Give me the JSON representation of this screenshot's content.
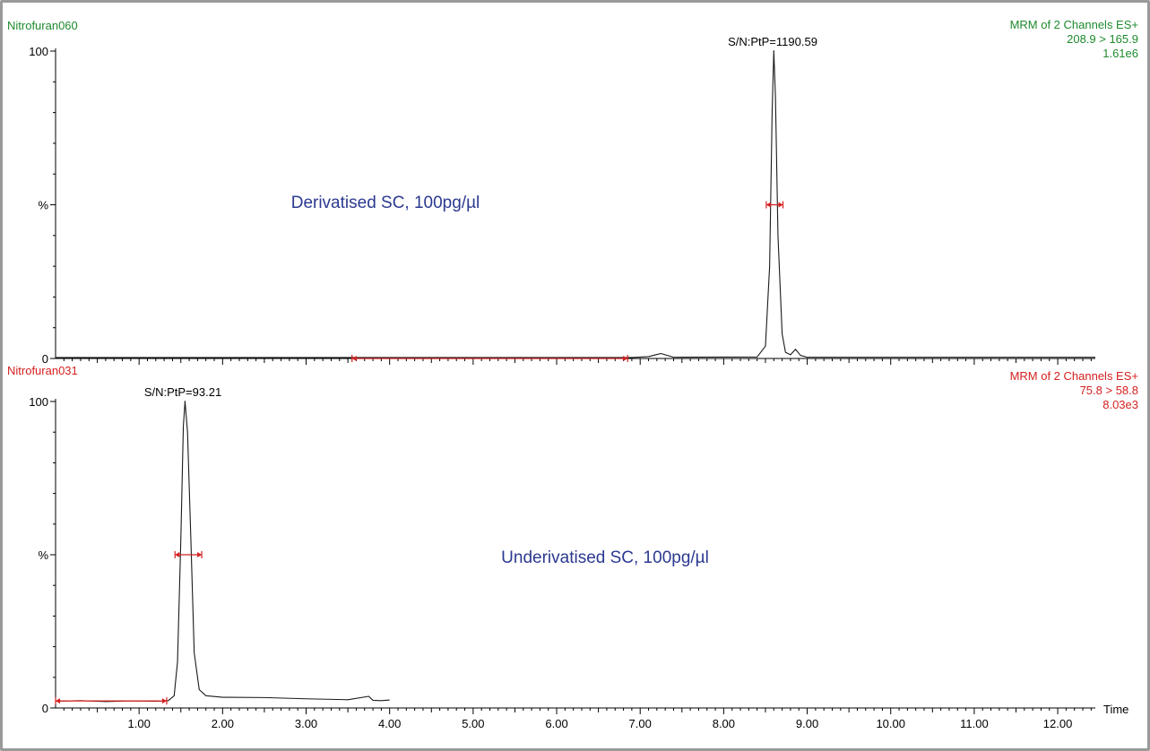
{
  "colors": {
    "trace": "#1a1a1a",
    "axis": "#000000",
    "integration": "#d42020",
    "panel_top_header": "#1e8a2e",
    "panel_bottom_header": "#d42020",
    "annotation": "#2b3990"
  },
  "chart_data": [
    {
      "type": "line",
      "name": "Nitrofuran060",
      "header_right": [
        "MRM of 2 Channels ES+",
        "208.9 > 165.9",
        "1.61e6"
      ],
      "annotation": "Derivatised SC, 100pg/µl",
      "peak_label": "S/N:PtP=1190.59",
      "y_ticks": [
        {
          "v": 0,
          "label": "0"
        },
        {
          "v": 50,
          "label": "%"
        },
        {
          "v": 100,
          "label": "100"
        }
      ],
      "ylim": [
        0,
        100
      ],
      "xlim": [
        0.0,
        12.45
      ],
      "x": [
        0.0,
        6.9,
        7.1,
        7.2,
        7.25,
        7.3,
        7.4,
        8.4,
        8.5,
        8.55,
        8.58,
        8.6,
        8.62,
        8.65,
        8.7,
        8.74,
        8.8,
        8.86,
        8.92,
        9.0,
        12.45
      ],
      "y": [
        0.3,
        0.3,
        0.6,
        1.3,
        1.6,
        1.2,
        0.4,
        0.5,
        4,
        30,
        80,
        100,
        85,
        40,
        8,
        2,
        1.2,
        3,
        1,
        0.4,
        0.4
      ],
      "integration": [
        {
          "x1": 3.55,
          "x2": 6.85,
          "y": 0
        },
        {
          "x1": 8.51,
          "x2": 8.71,
          "y": 50
        }
      ]
    },
    {
      "type": "line",
      "name": "Nitrofuran031",
      "header_right": [
        "MRM of 2 Channels ES+",
        "75.8 > 58.8",
        "8.03e3"
      ],
      "annotation": "Underivatised SC, 100pg/µl",
      "peak_label": "S/N:PtP=93.21",
      "y_ticks": [
        {
          "v": 0,
          "label": "0"
        },
        {
          "v": 50,
          "label": "%"
        },
        {
          "v": 100,
          "label": "100"
        }
      ],
      "ylim": [
        0,
        100
      ],
      "xlim": [
        0.0,
        12.45
      ],
      "xlabel": "Time",
      "x_tick_labels": [
        "1.00",
        "2.00",
        "3.00",
        "4.00",
        "5.00",
        "6.00",
        "7.00",
        "8.00",
        "9.00",
        "10.00",
        "11.00",
        "12.00"
      ],
      "x": [
        0.0,
        0.3,
        0.6,
        0.9,
        1.2,
        1.35,
        1.42,
        1.46,
        1.5,
        1.53,
        1.55,
        1.58,
        1.62,
        1.66,
        1.72,
        1.8,
        2.0,
        2.5,
        3.0,
        3.5,
        3.75,
        3.8,
        3.9,
        4.0
      ],
      "y": [
        2.2,
        2.4,
        2.1,
        2.3,
        2.2,
        2.4,
        4,
        15,
        55,
        92,
        100,
        90,
        55,
        18,
        6,
        4,
        3.5,
        3.4,
        3,
        2.7,
        3.8,
        2.5,
        2.4,
        2.6
      ],
      "integration": [
        {
          "x1": 0.0,
          "x2": 1.33,
          "y": 2.3
        },
        {
          "x1": 1.43,
          "x2": 1.75,
          "y": 50
        }
      ]
    }
  ]
}
